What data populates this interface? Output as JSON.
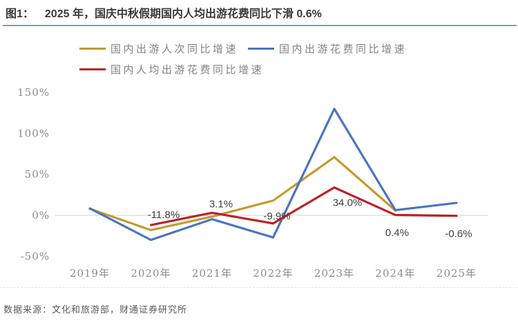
{
  "figure": {
    "label": "图1：",
    "title": "2025 年，国庆中秋假期国内人均出游花费同比下滑 0.6%"
  },
  "source": "数据来源：文化和旅游部，财通证券研究所",
  "colors": {
    "trips": "#c49a2d",
    "spending": "#4c74be",
    "per_capita": "#be2026",
    "title_rule": "#74a2b4",
    "zero_line": "#d9d9d9",
    "axis_text": "#8c8c8c",
    "data_label_text": "#404040"
  },
  "chart_data": {
    "type": "line",
    "title": "2025 年，国庆中秋假期国内人均出游花费同比下滑 0.6%",
    "categories": [
      "2019年",
      "2020年",
      "2021年",
      "2022年",
      "2023年",
      "2024年",
      "2025年"
    ],
    "series": [
      {
        "name": "国内出游人次同比增速",
        "color_key": "trips",
        "values": [
          8,
          -18,
          -1.5,
          18,
          71,
          5.9,
          null
        ]
      },
      {
        "name": "国内出游花费同比增速",
        "color_key": "spending",
        "values": [
          8.5,
          -30,
          -4.7,
          -27,
          130,
          6.3,
          15.2
        ]
      },
      {
        "name": "国内人均出游花费同比增速",
        "color_key": "per_capita",
        "values": [
          null,
          -11.8,
          3.1,
          -9.9,
          34.0,
          0.4,
          -0.6
        ],
        "labels": [
          "",
          "-11.8%",
          "3.1%",
          "-9.9%",
          "34.0%",
          "0.4%",
          "-0.6%"
        ]
      }
    ],
    "y_ticks": [
      "150%",
      "100%",
      "50%",
      "0%",
      "-50%"
    ],
    "y_tick_values": [
      150,
      100,
      50,
      0,
      -50
    ],
    "ylim": [
      -75,
      165
    ],
    "xlabel": "",
    "ylabel": "",
    "legend_position": "top",
    "grid": "zero-line-only"
  }
}
